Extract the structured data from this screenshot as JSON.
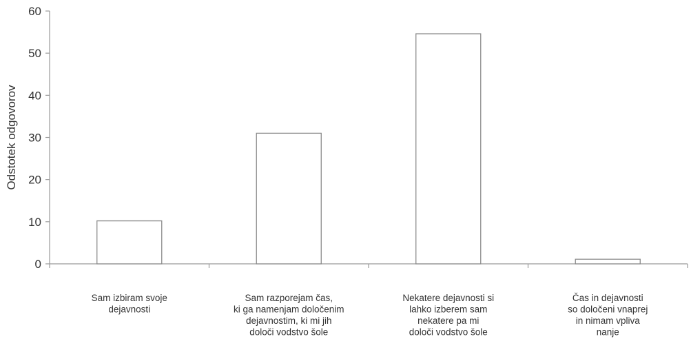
{
  "chart_data": {
    "type": "bar",
    "title": "",
    "xlabel": "",
    "ylabel": "Odstotek odgovorov",
    "ylim": [
      0,
      60
    ],
    "yticks": [
      0,
      10,
      20,
      30,
      40,
      50,
      60
    ],
    "grid": false,
    "categories": [
      [
        "Sam izbiram svoje",
        "dejavnosti"
      ],
      [
        "Sam razporejam čas,",
        "ki ga namenjam določenim",
        "dejavnostim, ki mi jih",
        "določi vodstvo šole"
      ],
      [
        "Nekatere dejavnosti si",
        "lahko izberem sam",
        "nekatere pa mi",
        "določi vodstvo šole"
      ],
      [
        "Čas in dejavnosti",
        "so določeni vnaprej",
        "in nimam vpliva",
        "nanje"
      ]
    ],
    "values": [
      10.2,
      31,
      54.6,
      1.1
    ],
    "colors": {
      "bar_fill": "#ffffff",
      "bar_stroke": "#8a8a8a",
      "axis": "#9a9a9a",
      "text": "#333333"
    }
  }
}
